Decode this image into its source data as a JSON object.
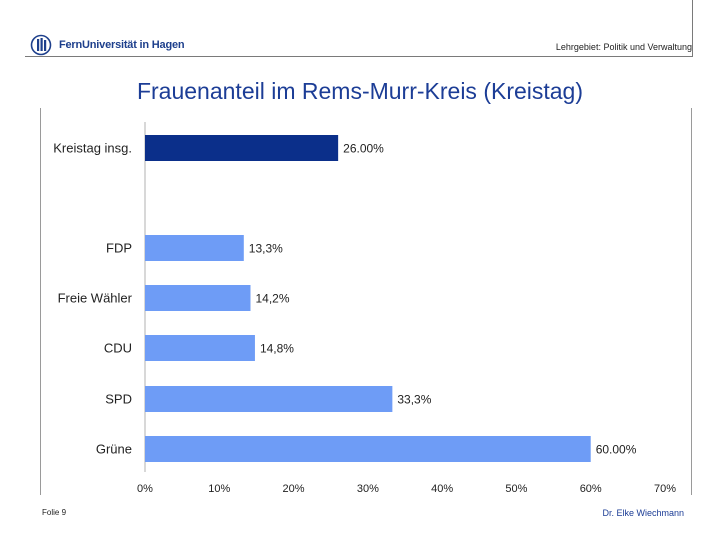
{
  "header": {
    "logo_text": "FernUniversität in Hagen",
    "department": "Lehrgebiet: Politik und Verwaltung"
  },
  "footer": {
    "slide": "Folie 9",
    "author": "Dr. Elke Wiechmann"
  },
  "colors": {
    "highlight_bar": "#0b2f8a",
    "bar": "#6e9cf6",
    "title": "#1c3d96"
  },
  "chart_data": {
    "type": "bar",
    "orientation": "horizontal",
    "title": "Frauenanteil im Rems-Murr-Kreis (Kreistag)",
    "categories": [
      "Kreistag insg.",
      "FDP",
      "Freie Wähler",
      "CDU",
      "SPD",
      "Grüne"
    ],
    "values": [
      26.0,
      13.3,
      14.2,
      14.8,
      33.3,
      60.0
    ],
    "value_labels": [
      "26.00%",
      "13,3%",
      "14,2%",
      "14,8%",
      "33,3%",
      "60.00%"
    ],
    "highlight": [
      true,
      false,
      false,
      false,
      false,
      false
    ],
    "xlim": [
      0,
      70
    ],
    "x_ticks": [
      "0%",
      "10%",
      "20%",
      "30%",
      "40%",
      "50%",
      "60%",
      "70%"
    ],
    "xlabel": "",
    "ylabel": "",
    "grid": false
  }
}
